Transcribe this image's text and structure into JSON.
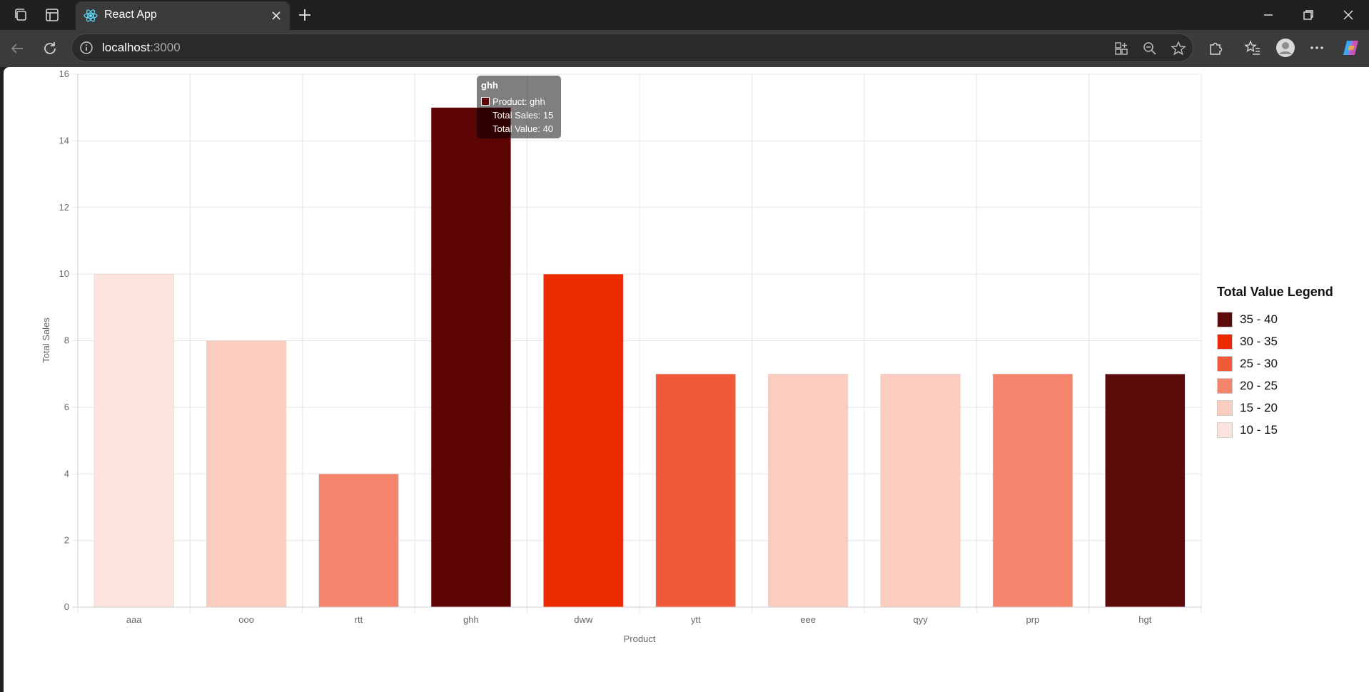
{
  "browser": {
    "tab_title": "React App",
    "url_host": "localhost",
    "url_port": ":3000"
  },
  "chart_data": {
    "type": "bar",
    "categories": [
      "aaa",
      "ooo",
      "rtt",
      "ghh",
      "dww",
      "ytt",
      "eee",
      "qyy",
      "prp",
      "hgt"
    ],
    "values": [
      10,
      8,
      4,
      15,
      10,
      7,
      7,
      7,
      7,
      7
    ],
    "bar_colors": [
      "#fbe4dd",
      "#fbccc0",
      "#f5846d",
      "#5d0505",
      "#ed2900",
      "#f05a38",
      "#fbccc0",
      "#fbccc0",
      "#f5846d",
      "#5d0a0a"
    ],
    "xlabel": "Product",
    "ylabel": "Total Sales",
    "ylim": [
      0,
      16
    ],
    "yticks": [
      0,
      2,
      4,
      6,
      8,
      10,
      12,
      14,
      16
    ],
    "grid": true
  },
  "legend": {
    "title": "Total Value Legend",
    "items": [
      {
        "label": "35 - 40",
        "color": "#5d0a0a"
      },
      {
        "label": "30 - 35",
        "color": "#ed2900"
      },
      {
        "label": "25 - 30",
        "color": "#f05a38"
      },
      {
        "label": "20 - 25",
        "color": "#f5846d"
      },
      {
        "label": "15 - 20",
        "color": "#fbccc0"
      },
      {
        "label": "10 - 15",
        "color": "#fbe4dd"
      }
    ]
  },
  "tooltip": {
    "title": "ghh",
    "line1": "Product: ghh",
    "line2": "Total Sales: 15",
    "line3": "Total Value: 40"
  }
}
